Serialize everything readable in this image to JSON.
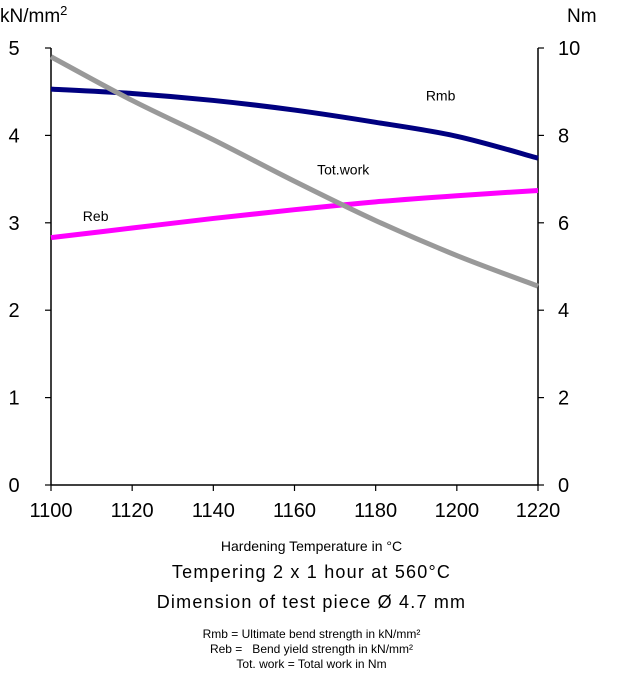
{
  "chart_data": {
    "type": "line",
    "xlabel": "Hardening Temperature in °C",
    "y_left_unit": "kN/mm",
    "y_left_unit_sup": "2",
    "y_right_unit": "Nm",
    "xlim": [
      1100,
      1220
    ],
    "ylim_left": [
      0,
      5
    ],
    "ylim_right": [
      0,
      10
    ],
    "x_ticks": [
      1100,
      1120,
      1140,
      1160,
      1180,
      1200,
      1220
    ],
    "y_left_ticks": [
      0,
      1,
      2,
      3,
      4,
      5
    ],
    "y_right_ticks": [
      0,
      2,
      4,
      6,
      8,
      10
    ],
    "grid": false,
    "series": [
      {
        "name": "Rmb",
        "axis": "left",
        "color": "#000080",
        "x": [
          1100,
          1120,
          1140,
          1160,
          1180,
          1200,
          1220
        ],
        "values": [
          4.53,
          4.48,
          4.4,
          4.29,
          4.15,
          3.99,
          3.74
        ]
      },
      {
        "name": "Reb",
        "axis": "left",
        "color": "#ff00ff",
        "x": [
          1100,
          1120,
          1140,
          1160,
          1180,
          1200,
          1220
        ],
        "values": [
          2.83,
          2.94,
          3.05,
          3.15,
          3.24,
          3.31,
          3.37
        ]
      },
      {
        "name": "Tot.work",
        "axis": "right",
        "color": "#999999",
        "x": [
          1100,
          1120,
          1140,
          1160,
          1180,
          1200,
          1220
        ],
        "values": [
          9.8,
          8.8,
          7.9,
          6.95,
          6.05,
          5.25,
          4.55
        ]
      }
    ],
    "annotations": [
      {
        "text": "Rmb",
        "x": 1196,
        "y": 4.4,
        "axis": "left"
      },
      {
        "text": "Tot.work",
        "x": 1172,
        "y": 7.1,
        "axis": "right"
      },
      {
        "text": "Reb",
        "x": 1111,
        "y": 3.02,
        "axis": "left"
      }
    ]
  },
  "captions": {
    "tempering": "Tempering 2 x 1 hour at 560°C",
    "dimension": "Dimension of test piece Ø 4.7 mm"
  },
  "legend": {
    "rmb": "Rmb = Ultimate bend strength in kN/mm²",
    "reb": "Reb =   Bend yield strength in kN/mm²",
    "tot": "Tot. work = Total work in Nm"
  }
}
